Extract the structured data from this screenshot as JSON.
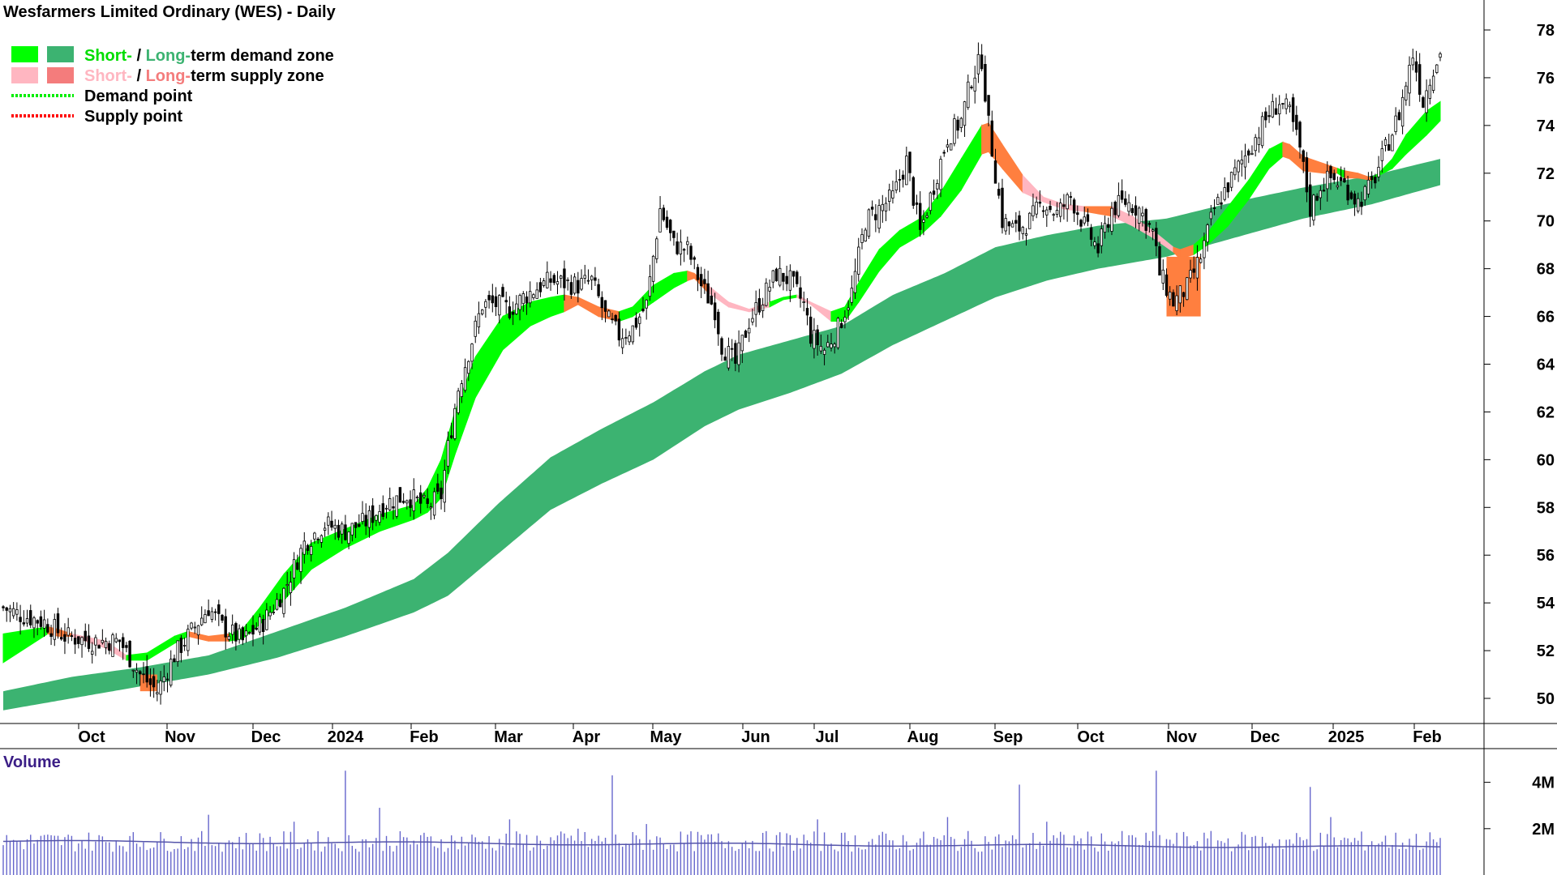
{
  "title": "Wesfarmers Limited Ordinary (WES) - Daily",
  "legend": {
    "demand_zone": {
      "short": "Short-",
      "sep": " / ",
      "long": "Long-",
      "rest": "term demand zone"
    },
    "supply_zone": {
      "short": "Short-",
      "sep": " / ",
      "long": "Long-",
      "rest": "term supply zone"
    },
    "demand_point": "Demand point",
    "supply_point": "Supply point"
  },
  "colors": {
    "short_demand": "#00ff00",
    "long_demand": "#3cb371",
    "short_supply": "#ffb6c1",
    "long_supply": "#f47c7c",
    "demand_point": "#00ee00",
    "supply_point": "#ff0000",
    "supply_transition": "#ff7f3f",
    "volume_bar": "#6666cc",
    "volume_avg": "#5555aa",
    "volume_label": "#3b1e86",
    "axis": "#000000"
  },
  "volume_label": "Volume",
  "chart_data": {
    "type": "candlestick",
    "price_axis": {
      "min": 49,
      "max": 79,
      "ticks": [
        50,
        52,
        54,
        56,
        58,
        60,
        62,
        64,
        66,
        68,
        70,
        72,
        74,
        76,
        78
      ]
    },
    "months": [
      "Oct",
      "Nov",
      "Dec",
      "2024",
      "Feb",
      "Mar",
      "Apr",
      "May",
      "Jun",
      "Jul",
      "Aug",
      "Sep",
      "Oct",
      "Nov",
      "Dec",
      "2025",
      "Feb"
    ],
    "price_anchors": [
      [
        0,
        53.8
      ],
      [
        5,
        53.5
      ],
      [
        12,
        53.2
      ],
      [
        18,
        52.6
      ],
      [
        26,
        52.4
      ],
      [
        34,
        52.4
      ],
      [
        40,
        51.0
      ],
      [
        45,
        50.3
      ],
      [
        50,
        51.8
      ],
      [
        56,
        53.0
      ],
      [
        60,
        53.8
      ],
      [
        64,
        53.0
      ],
      [
        70,
        52.4
      ],
      [
        76,
        53.2
      ],
      [
        82,
        54.5
      ],
      [
        88,
        56.5
      ],
      [
        94,
        57.3
      ],
      [
        100,
        57.0
      ],
      [
        106,
        57.4
      ],
      [
        112,
        58.2
      ],
      [
        118,
        58.5
      ],
      [
        124,
        58.0
      ],
      [
        128,
        58.5
      ],
      [
        130,
        60.5
      ],
      [
        133,
        63.0
      ],
      [
        136,
        64.5
      ],
      [
        140,
        66.5
      ],
      [
        144,
        66.5
      ],
      [
        148,
        66.3
      ],
      [
        152,
        66.8
      ],
      [
        156,
        67.2
      ],
      [
        160,
        67.5
      ],
      [
        164,
        67.4
      ],
      [
        168,
        67.3
      ],
      [
        172,
        67.5
      ],
      [
        176,
        66.0
      ],
      [
        180,
        65.2
      ],
      [
        184,
        65.5
      ],
      [
        188,
        66.5
      ],
      [
        192,
        70.5
      ],
      [
        196,
        69.0
      ],
      [
        200,
        68.8
      ],
      [
        204,
        67.3
      ],
      [
        208,
        66.3
      ],
      [
        210,
        64.8
      ],
      [
        214,
        64.0
      ],
      [
        218,
        65.8
      ],
      [
        222,
        66.8
      ],
      [
        226,
        67.8
      ],
      [
        230,
        67.5
      ],
      [
        234,
        66.5
      ],
      [
        236,
        65.2
      ],
      [
        240,
        64.6
      ],
      [
        244,
        65.5
      ],
      [
        248,
        67.0
      ],
      [
        252,
        70.0
      ],
      [
        256,
        70.5
      ],
      [
        260,
        71.0
      ],
      [
        264,
        72.5
      ],
      [
        268,
        69.5
      ],
      [
        272,
        71.5
      ],
      [
        276,
        73.5
      ],
      [
        280,
        74.2
      ],
      [
        283,
        76.0
      ],
      [
        286,
        76.8
      ],
      [
        288,
        74.0
      ],
      [
        292,
        70.0
      ],
      [
        296,
        69.6
      ],
      [
        300,
        70.0
      ],
      [
        304,
        70.8
      ],
      [
        308,
        70.3
      ],
      [
        312,
        71.0
      ],
      [
        316,
        69.8
      ],
      [
        320,
        68.8
      ],
      [
        324,
        70.5
      ],
      [
        328,
        70.8
      ],
      [
        332,
        70.5
      ],
      [
        336,
        69.5
      ],
      [
        338,
        67.8
      ],
      [
        342,
        66.6
      ],
      [
        346,
        67.2
      ],
      [
        350,
        68.5
      ],
      [
        354,
        70.5
      ],
      [
        358,
        71.5
      ],
      [
        362,
        72.5
      ],
      [
        366,
        73.5
      ],
      [
        370,
        74.5
      ],
      [
        373,
        75.0
      ],
      [
        376,
        74.5
      ],
      [
        379,
        73.0
      ],
      [
        382,
        70.5
      ],
      [
        385,
        71.5
      ],
      [
        388,
        71.8
      ],
      [
        392,
        71.5
      ],
      [
        396,
        70.8
      ],
      [
        400,
        71.5
      ],
      [
        404,
        73.0
      ],
      [
        408,
        74.5
      ],
      [
        412,
        77.0
      ],
      [
        415,
        75.0
      ],
      [
        418,
        76.5
      ],
      [
        420,
        77.0
      ]
    ],
    "short_term_zone": [
      [
        0,
        51.5,
        52.7,
        "demand"
      ],
      [
        13,
        52.7,
        53.0,
        "demand"
      ],
      [
        16,
        52.6,
        52.9,
        "supply_transition"
      ],
      [
        20,
        52.6,
        52.7,
        "supply_transition"
      ],
      [
        30,
        52.1,
        52.4,
        "supply_light"
      ],
      [
        36,
        51.6,
        51.8,
        "supply_light"
      ],
      [
        42,
        51.6,
        51.9,
        "demand"
      ],
      [
        50,
        52.3,
        52.6,
        "demand"
      ],
      [
        54,
        52.6,
        52.8,
        "demand"
      ],
      [
        60,
        52.4,
        52.6,
        "supply_transition"
      ],
      [
        66,
        52.4,
        52.7,
        "supply_transition"
      ],
      [
        70,
        52.5,
        52.9,
        "demand"
      ],
      [
        75,
        53.1,
        53.8,
        "demand"
      ],
      [
        82,
        54.1,
        55.2,
        "demand"
      ],
      [
        90,
        55.4,
        56.5,
        "demand"
      ],
      [
        100,
        56.3,
        57.1,
        "demand"
      ],
      [
        110,
        57.0,
        57.7,
        "demand"
      ],
      [
        120,
        57.5,
        58.1,
        "demand"
      ],
      [
        124,
        57.8,
        58.8,
        "demand"
      ],
      [
        128,
        58.4,
        60.0,
        "demand"
      ],
      [
        132,
        60.2,
        62.0,
        "demand"
      ],
      [
        138,
        62.6,
        64.3,
        "demand"
      ],
      [
        146,
        64.6,
        66.0,
        "demand"
      ],
      [
        154,
        65.6,
        66.6,
        "demand"
      ],
      [
        160,
        66.0,
        66.8,
        "demand"
      ],
      [
        164,
        66.2,
        66.9,
        "demand"
      ],
      [
        168,
        66.5,
        66.8,
        "supply_transition"
      ],
      [
        174,
        66.0,
        66.4,
        "supply_transition"
      ],
      [
        180,
        65.8,
        66.2,
        "supply_transition"
      ],
      [
        184,
        66.0,
        66.4,
        "demand"
      ],
      [
        190,
        66.6,
        67.3,
        "demand"
      ],
      [
        196,
        67.2,
        67.8,
        "demand"
      ],
      [
        200,
        67.5,
        67.9,
        "demand"
      ],
      [
        202,
        67.6,
        67.8,
        "supply_transition"
      ],
      [
        206,
        67.0,
        67.3,
        "supply_transition"
      ],
      [
        212,
        66.4,
        66.6,
        "supply_light"
      ],
      [
        218,
        66.2,
        66.3,
        "supply_light"
      ],
      [
        224,
        66.4,
        66.6,
        "supply_light"
      ],
      [
        228,
        66.7,
        66.8,
        "demand"
      ],
      [
        232,
        66.8,
        66.9,
        "demand"
      ],
      [
        236,
        66.5,
        66.6,
        "supply_light"
      ],
      [
        242,
        65.8,
        66.2,
        "supply_light"
      ],
      [
        246,
        65.8,
        66.4,
        "demand"
      ],
      [
        250,
        66.6,
        67.4,
        "demand"
      ],
      [
        256,
        67.9,
        68.8,
        "demand"
      ],
      [
        262,
        68.9,
        69.6,
        "demand"
      ],
      [
        268,
        69.4,
        70.1,
        "demand"
      ],
      [
        274,
        70.2,
        71.2,
        "demand"
      ],
      [
        280,
        71.3,
        72.6,
        "demand"
      ],
      [
        286,
        72.8,
        74.0,
        "demand"
      ],
      [
        288,
        72.9,
        74.1,
        "supply_transition"
      ],
      [
        292,
        72.2,
        73.2,
        "supply_transition"
      ],
      [
        298,
        71.2,
        71.9,
        "supply_transition"
      ],
      [
        304,
        70.8,
        71.0,
        "supply_light"
      ],
      [
        310,
        70.5,
        70.7,
        "supply_light"
      ],
      [
        316,
        70.4,
        70.6,
        "supply_light"
      ],
      [
        320,
        70.3,
        70.6,
        "supply_transition"
      ],
      [
        324,
        70.2,
        70.6,
        "supply_transition"
      ],
      [
        330,
        69.8,
        70.2,
        "supply_light"
      ],
      [
        336,
        69.3,
        69.6,
        "supply_light"
      ],
      [
        342,
        68.7,
        68.9,
        "supply_light"
      ],
      [
        344,
        68.4,
        68.8,
        "supply_transition"
      ],
      [
        348,
        68.6,
        69.0,
        "supply_transition"
      ],
      [
        352,
        69.0,
        69.5,
        "demand"
      ],
      [
        358,
        69.8,
        70.6,
        "demand"
      ],
      [
        364,
        70.9,
        71.7,
        "demand"
      ],
      [
        370,
        72.2,
        73.0,
        "demand"
      ],
      [
        374,
        72.7,
        73.3,
        "demand"
      ],
      [
        376,
        72.6,
        73.2,
        "supply_transition"
      ],
      [
        380,
        72.1,
        72.7,
        "supply_transition"
      ],
      [
        386,
        72.0,
        72.4,
        "supply_transition"
      ],
      [
        390,
        72.0,
        72.2,
        "supply_transition"
      ],
      [
        392,
        71.8,
        72.1,
        "demand"
      ],
      [
        396,
        71.8,
        72.0,
        "supply_transition"
      ],
      [
        400,
        71.7,
        71.8,
        "supply_transition"
      ],
      [
        402,
        71.9,
        72.0,
        "demand"
      ],
      [
        406,
        72.2,
        72.6,
        "demand"
      ],
      [
        410,
        72.8,
        73.6,
        "demand"
      ],
      [
        416,
        73.6,
        74.6,
        "demand"
      ],
      [
        420,
        74.2,
        75.0,
        "demand"
      ]
    ],
    "long_term_zone": [
      [
        0,
        49.5,
        50.3
      ],
      [
        20,
        50.0,
        50.9
      ],
      [
        40,
        50.5,
        51.3
      ],
      [
        60,
        51.0,
        51.8
      ],
      [
        80,
        51.7,
        52.8
      ],
      [
        100,
        52.6,
        53.8
      ],
      [
        120,
        53.6,
        55.0
      ],
      [
        130,
        54.3,
        56.1
      ],
      [
        145,
        56.1,
        58.2
      ],
      [
        160,
        57.9,
        60.1
      ],
      [
        175,
        59.0,
        61.3
      ],
      [
        190,
        60.0,
        62.4
      ],
      [
        205,
        61.4,
        63.7
      ],
      [
        215,
        62.1,
        64.4
      ],
      [
        230,
        62.8,
        65.0
      ],
      [
        245,
        63.6,
        65.6
      ],
      [
        260,
        64.8,
        66.9
      ],
      [
        275,
        65.8,
        67.8
      ],
      [
        290,
        66.8,
        68.9
      ],
      [
        305,
        67.5,
        69.4
      ],
      [
        320,
        68.0,
        69.8
      ],
      [
        340,
        68.5,
        70.1
      ],
      [
        360,
        69.3,
        70.8
      ],
      [
        380,
        70.1,
        71.4
      ],
      [
        400,
        70.7,
        71.9
      ],
      [
        420,
        71.5,
        72.6
      ]
    ],
    "volume_axis": {
      "max": 5000000,
      "ticks": [
        {
          "value": 4000000,
          "label": "4M"
        },
        {
          "value": 2000000,
          "label": "2M"
        }
      ]
    }
  }
}
